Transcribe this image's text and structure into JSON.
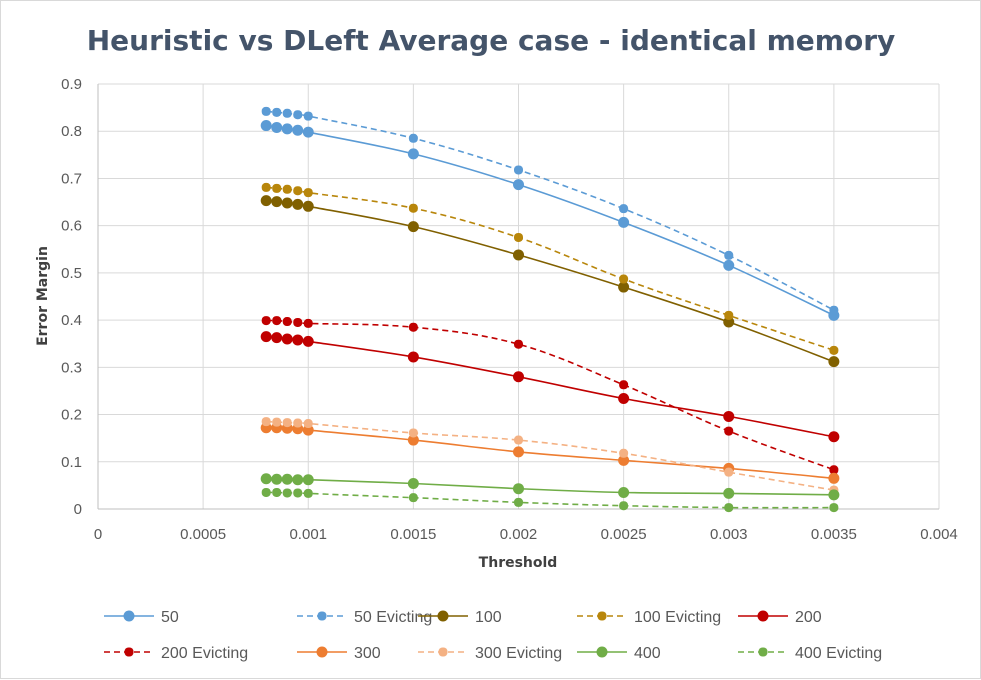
{
  "chart_data": {
    "type": "scatter",
    "title": "Heuristic vs DLeft Average case - identical memory",
    "xlabel": "Threshold",
    "ylabel": "Error Margin",
    "xlim": [
      0,
      0.004
    ],
    "ylim": [
      0,
      0.9
    ],
    "x_ticks": [
      "0",
      "0.0005",
      "0.001",
      "0.0015",
      "0.002",
      "0.0025",
      "0.003",
      "0.0035",
      "0.004"
    ],
    "y_ticks": [
      "0",
      "0.1",
      "0.2",
      "0.3",
      "0.4",
      "0.5",
      "0.6",
      "0.7",
      "0.8",
      "0.9"
    ],
    "grid": true,
    "legend_position": "bottom",
    "x": [
      0.0008,
      0.00085,
      0.0009,
      0.00095,
      0.001,
      0.0015,
      0.002,
      0.0025,
      0.003,
      0.0035
    ],
    "series": [
      {
        "name": "50",
        "color": "#5b9bd5",
        "dashed": false,
        "values": [
          0.812,
          0.808,
          0.805,
          0.802,
          0.798,
          0.752,
          0.687,
          0.607,
          0.516,
          0.41
        ]
      },
      {
        "name": "50 Evicting",
        "color": "#5b9bd5",
        "dashed": true,
        "values": [
          0.842,
          0.84,
          0.838,
          0.835,
          0.832,
          0.785,
          0.718,
          0.636,
          0.537,
          0.421
        ]
      },
      {
        "name": "100",
        "color": "#806000",
        "dashed": false,
        "values": [
          0.653,
          0.651,
          0.648,
          0.645,
          0.641,
          0.598,
          0.538,
          0.47,
          0.396,
          0.312
        ]
      },
      {
        "name": "100 Evicting",
        "color": "#b8860b",
        "dashed": true,
        "values": [
          0.681,
          0.679,
          0.677,
          0.674,
          0.67,
          0.637,
          0.575,
          0.487,
          0.41,
          0.336
        ]
      },
      {
        "name": "200",
        "color": "#c00000",
        "dashed": false,
        "values": [
          0.365,
          0.363,
          0.36,
          0.358,
          0.355,
          0.322,
          0.28,
          0.234,
          0.196,
          0.153
        ]
      },
      {
        "name": "200 Evicting",
        "color": "#c00000",
        "dashed": true,
        "values": [
          0.399,
          0.399,
          0.397,
          0.395,
          0.393,
          0.385,
          0.349,
          0.263,
          0.165,
          0.083
        ]
      },
      {
        "name": "300",
        "color": "#ed7d31",
        "dashed": false,
        "values": [
          0.172,
          0.172,
          0.171,
          0.17,
          0.167,
          0.146,
          0.121,
          0.103,
          0.086,
          0.065
        ]
      },
      {
        "name": "300 Evicting",
        "color": "#f4b183",
        "dashed": true,
        "values": [
          0.185,
          0.184,
          0.183,
          0.182,
          0.181,
          0.161,
          0.146,
          0.118,
          0.078,
          0.04
        ]
      },
      {
        "name": "400",
        "color": "#70ad47",
        "dashed": false,
        "values": [
          0.064,
          0.063,
          0.063,
          0.062,
          0.062,
          0.054,
          0.043,
          0.035,
          0.033,
          0.03
        ]
      },
      {
        "name": "400 Evicting",
        "color": "#70ad47",
        "dashed": true,
        "values": [
          0.035,
          0.035,
          0.034,
          0.034,
          0.033,
          0.024,
          0.014,
          0.007,
          0.003,
          0.003
        ]
      }
    ]
  }
}
